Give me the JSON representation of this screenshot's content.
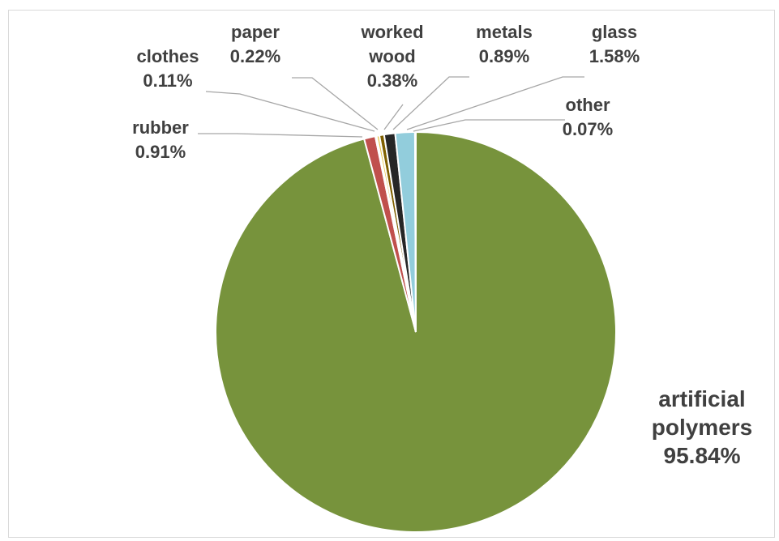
{
  "chart_data": {
    "type": "pie",
    "title": "",
    "slices": [
      {
        "label": "artificial polymers",
        "value": 95.84,
        "display": "95.84%",
        "color": "#77933c"
      },
      {
        "label": "rubber",
        "value": 0.91,
        "display": "0.91%",
        "color": "#c0504d"
      },
      {
        "label": "clothes",
        "value": 0.11,
        "display": "0.11%",
        "color": "#ffffff"
      },
      {
        "label": "paper",
        "value": 0.22,
        "display": "0.22%",
        "color": "#e8c44a"
      },
      {
        "label": "worked wood",
        "value": 0.38,
        "display": "0.38%",
        "color": "#7f6000"
      },
      {
        "label": "metals",
        "value": 0.89,
        "display": "0.89%",
        "color": "#262626"
      },
      {
        "label": "glass",
        "value": 1.58,
        "display": "1.58%",
        "color": "#92cddc"
      },
      {
        "label": "other",
        "value": 0.07,
        "display": "0.07%",
        "color": "#ffffff"
      }
    ],
    "legend": "none"
  }
}
